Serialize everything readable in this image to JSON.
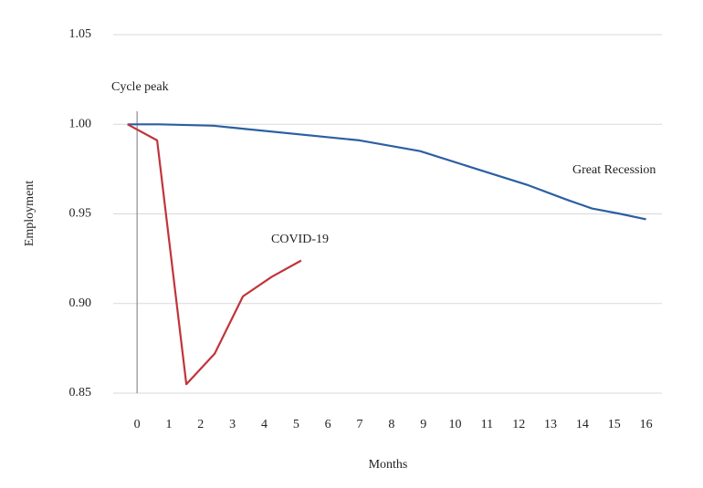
{
  "chart_data": {
    "type": "line",
    "y_label": "Employment",
    "x_label": "Months",
    "annotation": "Cycle peak",
    "xlim": [
      -0.75,
      16.5
    ],
    "xticks": [
      0,
      1,
      2,
      3,
      4,
      5,
      6,
      7,
      8,
      9,
      10,
      11,
      12,
      13,
      14,
      15,
      16
    ],
    "ylim": [
      0.85,
      1.05
    ],
    "yticks": [
      0.85,
      {
        "value": 0.9,
        "label": "0.90"
      },
      0.95,
      {
        "value": 1.0,
        "label": "1.00"
      },
      1.05
    ],
    "grid": true,
    "series": [
      {
        "name": "Great Recession",
        "color": "#2b5fa3",
        "x": [
          -0.3,
          0.7,
          2.4,
          3.4,
          7,
          8.9,
          10.6,
          12.3,
          13.5,
          14.3,
          15.2,
          16
        ],
        "values": [
          1.0,
          1.0,
          0.9992,
          0.9974,
          0.991,
          0.985,
          0.9755,
          0.966,
          0.958,
          0.953,
          0.95,
          0.947
        ]
      },
      {
        "name": "COVID-19",
        "color": "#c1343a",
        "x": [
          -0.3,
          0.63,
          1.55,
          2.44,
          3.33,
          4.24,
          5.16
        ],
        "values": [
          1.0,
          0.991,
          0.855,
          0.872,
          0.904,
          0.915,
          0.924
        ]
      }
    ]
  }
}
